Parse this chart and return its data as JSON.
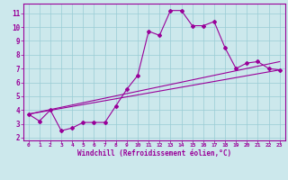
{
  "xlabel": "Windchill (Refroidissement éolien,°C)",
  "bg_color": "#cce8ec",
  "grid_color": "#99ccd4",
  "line_color": "#990099",
  "spine_color": "#660066",
  "xlim": [
    -0.5,
    23.5
  ],
  "ylim": [
    1.8,
    11.7
  ],
  "xticks": [
    0,
    1,
    2,
    3,
    4,
    5,
    6,
    7,
    8,
    9,
    10,
    11,
    12,
    13,
    14,
    15,
    16,
    17,
    18,
    19,
    20,
    21,
    22,
    23
  ],
  "yticks": [
    2,
    3,
    4,
    5,
    6,
    7,
    8,
    9,
    10,
    11
  ],
  "line1_x": [
    0,
    1,
    2,
    3,
    4,
    5,
    6,
    7,
    8,
    9,
    10,
    11,
    12,
    13,
    14,
    15,
    16,
    17,
    18,
    19,
    20,
    21,
    22,
    23
  ],
  "line1_y": [
    3.7,
    3.2,
    4.0,
    2.5,
    2.7,
    3.1,
    3.1,
    3.1,
    4.3,
    5.5,
    6.5,
    9.7,
    9.4,
    11.2,
    11.2,
    10.1,
    10.1,
    10.4,
    8.5,
    7.0,
    7.4,
    7.5,
    7.0,
    6.9
  ],
  "line2_x": [
    0,
    23
  ],
  "line2_y": [
    3.7,
    7.5
  ],
  "line3_x": [
    0,
    23
  ],
  "line3_y": [
    3.7,
    6.9
  ]
}
